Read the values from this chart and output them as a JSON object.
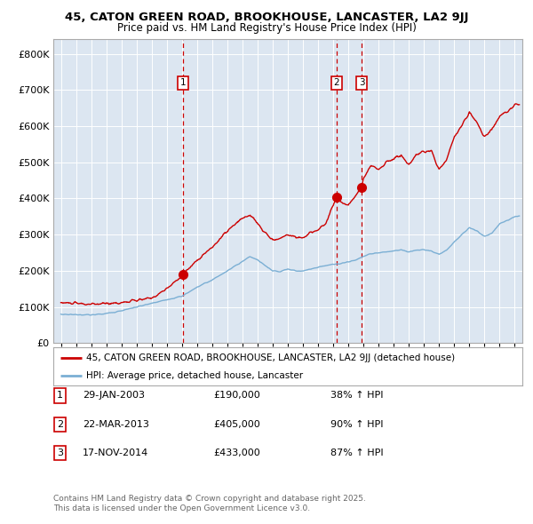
{
  "title1": "45, CATON GREEN ROAD, BROOKHOUSE, LANCASTER, LA2 9JJ",
  "title2": "Price paid vs. HM Land Registry's House Price Index (HPI)",
  "sales": [
    {
      "label": "1",
      "date_str": "29-JAN-2003",
      "date_x": 2003.08,
      "price": 190000,
      "pct": "38% ↑ HPI"
    },
    {
      "label": "2",
      "date_str": "22-MAR-2013",
      "date_x": 2013.22,
      "price": 405000,
      "pct": "90% ↑ HPI"
    },
    {
      "label": "3",
      "date_str": "17-NOV-2014",
      "date_x": 2014.88,
      "price": 433000,
      "pct": "87% ↑ HPI"
    }
  ],
  "legend_line1": "45, CATON GREEN ROAD, BROOKHOUSE, LANCASTER, LA2 9JJ (detached house)",
  "legend_line2": "HPI: Average price, detached house, Lancaster",
  "footnote1": "Contains HM Land Registry data © Crown copyright and database right 2025.",
  "footnote2": "This data is licensed under the Open Government Licence v3.0.",
  "red_color": "#cc0000",
  "blue_color": "#7bafd4",
  "bg_color": "#dce6f1",
  "ylim": [
    0,
    840000
  ],
  "xlim": [
    1994.5,
    2025.5
  ],
  "red_anchors_x": [
    1995,
    1996,
    1997,
    1998,
    1999,
    2000,
    2001,
    2002,
    2003.08,
    2004,
    2005,
    2006,
    2007,
    2007.5,
    2008,
    2008.5,
    2009,
    2009.5,
    2010,
    2010.5,
    2011,
    2011.5,
    2012,
    2012.5,
    2013.22,
    2013.5,
    2014,
    2014.88,
    2015,
    2015.5,
    2016,
    2016.5,
    2017,
    2017.5,
    2018,
    2018.5,
    2019,
    2019.5,
    2020,
    2020.5,
    2021,
    2021.5,
    2022,
    2022.5,
    2023,
    2023.5,
    2024,
    2024.5,
    2025,
    2025.3
  ],
  "red_anchors_y": [
    112000,
    110000,
    107000,
    110000,
    112000,
    118000,
    125000,
    150000,
    190000,
    230000,
    265000,
    310000,
    345000,
    355000,
    330000,
    305000,
    285000,
    290000,
    300000,
    295000,
    290000,
    305000,
    315000,
    330000,
    405000,
    390000,
    380000,
    433000,
    460000,
    490000,
    480000,
    500000,
    510000,
    520000,
    490000,
    520000,
    530000,
    530000,
    480000,
    510000,
    570000,
    600000,
    640000,
    610000,
    570000,
    590000,
    630000,
    640000,
    660000,
    660000
  ],
  "blue_anchors_x": [
    1995,
    1996,
    1997,
    1998,
    1999,
    2000,
    2001,
    2002,
    2003,
    2004,
    2005,
    2006,
    2007,
    2007.5,
    2008,
    2008.5,
    2009,
    2009.5,
    2010,
    2010.5,
    2011,
    2011.5,
    2012,
    2012.5,
    2013,
    2013.5,
    2014,
    2014.5,
    2015,
    2015.5,
    2016,
    2016.5,
    2017,
    2017.5,
    2018,
    2018.5,
    2019,
    2019.5,
    2020,
    2020.5,
    2021,
    2021.5,
    2022,
    2022.5,
    2023,
    2023.5,
    2024,
    2024.5,
    2025,
    2025.3
  ],
  "blue_anchors_y": [
    80000,
    79000,
    78000,
    82000,
    90000,
    100000,
    110000,
    120000,
    130000,
    155000,
    175000,
    200000,
    225000,
    240000,
    230000,
    215000,
    200000,
    198000,
    205000,
    200000,
    200000,
    205000,
    210000,
    215000,
    218000,
    220000,
    225000,
    230000,
    240000,
    248000,
    250000,
    252000,
    255000,
    258000,
    252000,
    258000,
    258000,
    255000,
    245000,
    258000,
    280000,
    300000,
    320000,
    310000,
    295000,
    305000,
    330000,
    340000,
    350000,
    352000
  ]
}
